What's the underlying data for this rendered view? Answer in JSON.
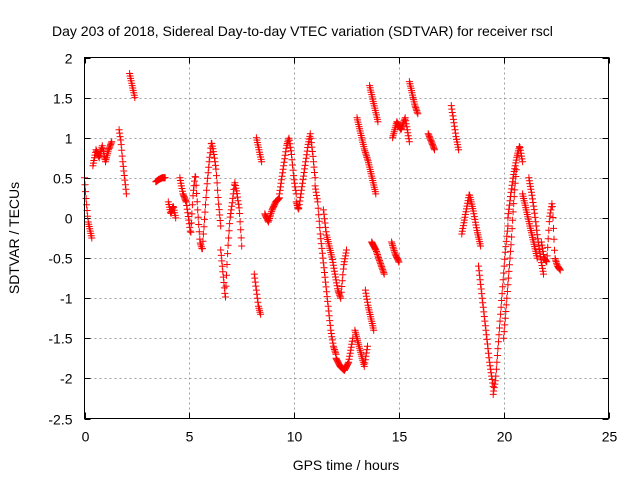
{
  "chart_data": {
    "type": "scatter",
    "title": "Day 203 of 2018, Sidereal Day-to-day VTEC variation (SDTVAR) for receiver rscl",
    "xlabel": "GPS time / hours",
    "ylabel": "SDTVAR / TECUs",
    "xlim": [
      0,
      25
    ],
    "ylim": [
      -2.5,
      2
    ],
    "xticks": [
      0,
      5,
      10,
      15,
      20,
      25
    ],
    "xtick_labels": [
      "0",
      "5",
      "10",
      "15",
      "20",
      "25"
    ],
    "yticks": [
      2,
      1.5,
      1,
      0.5,
      0,
      -0.5,
      -1,
      -1.5,
      -2,
      -2.5
    ],
    "ytick_labels": [
      "2",
      "1.5",
      "1",
      "0.5",
      "0",
      "-0.5",
      "-1",
      "-1.5",
      "-2",
      "-2.5"
    ],
    "grid": true,
    "marker": "+",
    "color": "#ff0000",
    "segments": [
      {
        "t0": 0.0,
        "t1": 0.35,
        "v": [
          0.5,
          0.2,
          -0.05,
          -0.15,
          -0.25
        ]
      },
      {
        "t0": 0.4,
        "t1": 1.3,
        "v": [
          0.65,
          0.85,
          0.75,
          0.9,
          0.7,
          0.85,
          0.95
        ]
      },
      {
        "t0": 1.65,
        "t1": 2.0,
        "v": [
          1.1,
          0.95,
          0.7,
          0.5,
          0.3
        ]
      },
      {
        "t0": 2.15,
        "t1": 2.4,
        "v": [
          1.8,
          1.65,
          1.5
        ]
      },
      {
        "t0": 3.4,
        "t1": 3.85,
        "v": [
          0.45,
          0.48,
          0.5,
          0.5
        ]
      },
      {
        "t0": 4.0,
        "t1": 4.35,
        "v": [
          0.2,
          0.05,
          0.15,
          0.0
        ]
      },
      {
        "t0": 4.55,
        "t1": 4.85,
        "v": [
          0.5,
          0.3,
          0.2
        ]
      },
      {
        "t0": 4.85,
        "t1": 6.5,
        "v": [
          0.2,
          0.0,
          -0.2,
          0.3,
          0.55,
          0.1,
          -0.3,
          -0.4,
          0.0,
          0.4,
          0.7,
          0.95,
          0.8,
          0.6,
          0.2,
          -0.1
        ]
      },
      {
        "t0": 6.5,
        "t1": 7.5,
        "v": [
          -0.4,
          -0.7,
          -1.0,
          -0.4,
          0.0,
          0.2,
          0.45,
          0.3,
          0.1,
          -0.35
        ]
      },
      {
        "t0": 8.1,
        "t1": 8.4,
        "v": [
          -0.7,
          -0.9,
          -1.1,
          -1.2
        ]
      },
      {
        "t0": 8.2,
        "t1": 8.45,
        "v": [
          1.0,
          0.85,
          0.7
        ]
      },
      {
        "t0": 8.6,
        "t1": 9.3,
        "v": [
          0.05,
          -0.05,
          0.1,
          0.2,
          0.25
        ]
      },
      {
        "t0": 9.3,
        "t1": 10.1,
        "v": [
          0.3,
          0.5,
          0.7,
          0.9,
          1.0,
          0.8,
          0.5,
          0.3
        ]
      },
      {
        "t0": 10.1,
        "t1": 11.0,
        "v": [
          0.2,
          0.1,
          0.3,
          0.5,
          0.7,
          0.9,
          1.05,
          0.8,
          0.5
        ]
      },
      {
        "t0": 11.0,
        "t1": 12.0,
        "v": [
          0.4,
          0.2,
          -0.2,
          -0.5,
          -0.8,
          -1.1,
          -1.4,
          -1.6,
          -1.7
        ]
      },
      {
        "t0": 11.4,
        "t1": 12.5,
        "v": [
          0.1,
          -0.2,
          -0.35,
          -0.5,
          -0.7,
          -0.9,
          -1.0,
          -0.6,
          -0.4
        ]
      },
      {
        "t0": 12.0,
        "t1": 12.8,
        "v": [
          -1.75,
          -1.85,
          -1.9,
          -1.8,
          -1.5
        ]
      },
      {
        "t0": 12.9,
        "t1": 13.5,
        "v": [
          -1.4,
          -1.55,
          -1.7,
          -1.85,
          -1.6
        ]
      },
      {
        "t0": 13.4,
        "t1": 13.8,
        "v": [
          -0.9,
          -1.1,
          -1.25,
          -1.4
        ]
      },
      {
        "t0": 13.0,
        "t1": 13.9,
        "v": [
          1.25,
          1.05,
          0.85,
          0.7,
          0.5,
          0.3
        ]
      },
      {
        "t0": 13.6,
        "t1": 14.0,
        "v": [
          1.65,
          1.5,
          1.35,
          1.2
        ]
      },
      {
        "t0": 13.7,
        "t1": 14.3,
        "v": [
          -0.3,
          -0.4,
          -0.55,
          -0.7
        ]
      },
      {
        "t0": 14.65,
        "t1": 15.0,
        "v": [
          -0.3,
          -0.45,
          -0.55
        ]
      },
      {
        "t0": 14.7,
        "t1": 15.5,
        "v": [
          1.0,
          1.2,
          1.1,
          1.25,
          0.95
        ]
      },
      {
        "t0": 15.5,
        "t1": 15.9,
        "v": [
          1.7,
          1.55,
          1.4,
          1.3
        ]
      },
      {
        "t0": 16.4,
        "t1": 16.7,
        "v": [
          1.05,
          0.95,
          0.85
        ]
      },
      {
        "t0": 17.5,
        "t1": 17.85,
        "v": [
          1.4,
          1.2,
          1.0,
          0.85
        ]
      },
      {
        "t0": 18.0,
        "t1": 18.9,
        "v": [
          -0.2,
          0.05,
          0.3,
          0.1,
          -0.15,
          -0.35
        ]
      },
      {
        "t0": 18.8,
        "t1": 19.5,
        "v": [
          -0.6,
          -1.0,
          -1.4,
          -1.8,
          -2.1
        ]
      },
      {
        "t0": 19.5,
        "t1": 20.2,
        "v": [
          -2.2,
          -2.0,
          -1.6,
          -1.2,
          -0.8,
          -0.4,
          -0.1
        ]
      },
      {
        "t0": 20.0,
        "t1": 20.6,
        "v": [
          -1.5,
          -1.1,
          -0.7,
          -0.3,
          0.2,
          0.6
        ]
      },
      {
        "t0": 20.2,
        "t1": 20.9,
        "v": [
          0.0,
          0.3,
          0.55,
          0.75,
          0.9,
          0.7
        ]
      },
      {
        "t0": 20.9,
        "t1": 21.6,
        "v": [
          0.3,
          0.1,
          -0.1,
          -0.3,
          -0.5
        ]
      },
      {
        "t0": 21.2,
        "t1": 21.9,
        "v": [
          0.5,
          0.3,
          0.05,
          -0.25,
          -0.5,
          -0.7
        ]
      },
      {
        "t0": 21.8,
        "t1": 22.7,
        "v": [
          -0.3,
          -0.5,
          -0.55,
          0.0,
          0.2,
          -0.5,
          -0.6,
          -0.65
        ]
      }
    ]
  }
}
